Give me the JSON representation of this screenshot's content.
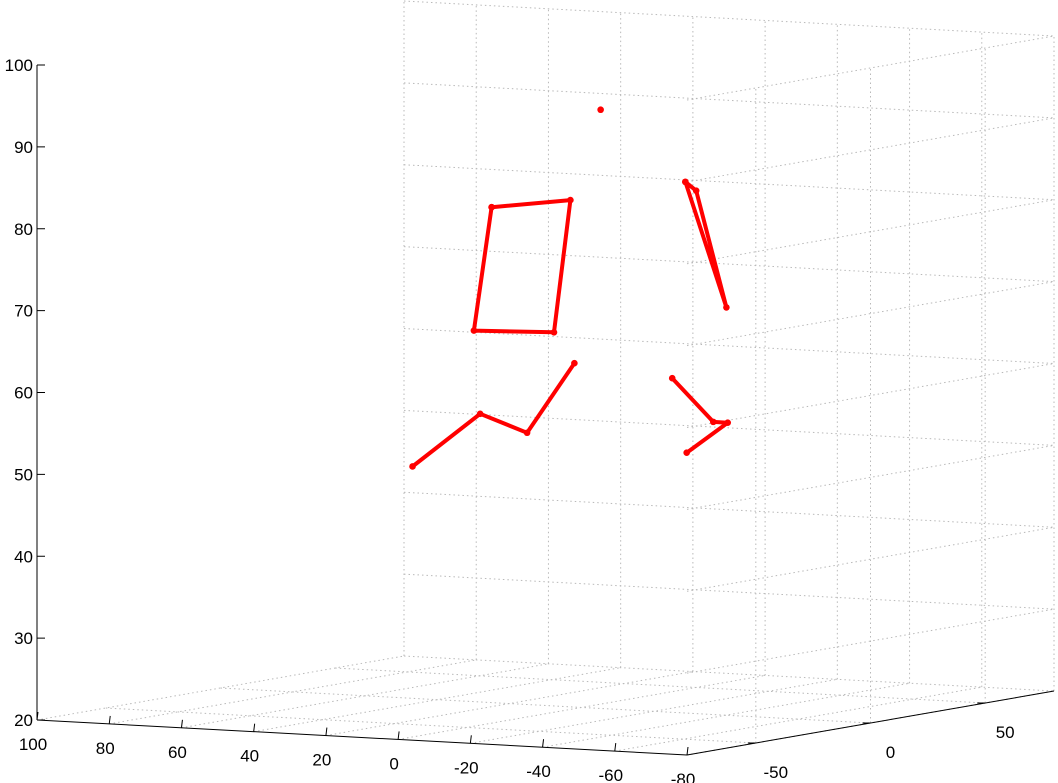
{
  "chart_data": {
    "type": "line3d",
    "grid": true,
    "color": "#ff0000",
    "xlim": [
      -80,
      100
    ],
    "ylim": [
      -80,
      80
    ],
    "zlim": [
      20,
      100
    ],
    "xticks": [
      "100",
      "80",
      "60",
      "40",
      "20",
      "0",
      "-20",
      "-40",
      "-60",
      "-80"
    ],
    "yticks": [
      "-50",
      "0",
      "50"
    ],
    "zticks": [
      "20",
      "30",
      "40",
      "50",
      "60",
      "70",
      "80",
      "90",
      "100"
    ],
    "series": [
      {
        "points": [
          [
            -4,
            2,
            93
          ]
        ]
      },
      {
        "points": [
          [
            30,
            8,
            80
          ],
          [
            12,
            14,
            81
          ],
          [
            14,
            10,
            65
          ],
          [
            33,
            5,
            65
          ],
          [
            30,
            8,
            80
          ]
        ]
      },
      {
        "points": [
          [
            -30,
            -2,
            85
          ],
          [
            -33,
            -2,
            84
          ],
          [
            -42,
            -3,
            70
          ],
          [
            -30,
            -2,
            85
          ]
        ]
      },
      {
        "points": [
          [
            50,
            5,
            48
          ],
          [
            30,
            3,
            55
          ],
          [
            17,
            3,
            53
          ],
          [
            2,
            0,
            62
          ]
        ]
      },
      {
        "points": [
          [
            -27,
            -3,
            61
          ],
          [
            -39,
            -4,
            56
          ],
          [
            -43,
            -4,
            56
          ],
          [
            -31,
            -3,
            52
          ]
        ]
      }
    ]
  }
}
